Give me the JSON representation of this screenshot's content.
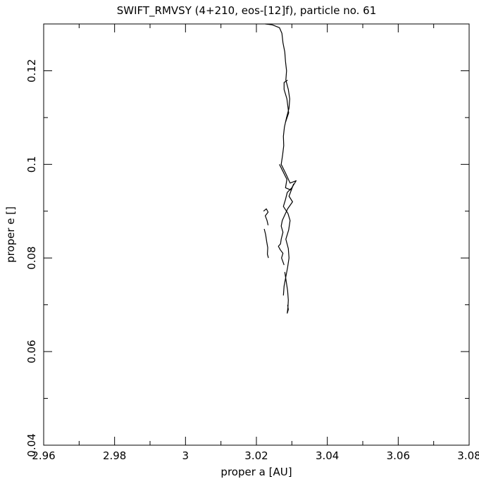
{
  "chart_data": {
    "type": "line",
    "title": "SWIFT_RMVSY (4+210, eos-[12]f), particle no. 61",
    "xlabel": "proper a [AU]",
    "ylabel": "proper e []",
    "xlim": [
      2.96,
      3.08
    ],
    "ylim": [
      0.04,
      0.13
    ],
    "x_ticks": [
      2.96,
      2.98,
      3.0,
      3.02,
      3.04,
      3.06,
      3.08
    ],
    "x_tick_labels": [
      "2.96",
      "2.98",
      "3",
      "3.02",
      "3.04",
      "3.06",
      "3.08"
    ],
    "y_ticks": [
      0.04,
      0.06,
      0.08,
      0.1,
      0.12
    ],
    "y_tick_labels": [
      "0.04",
      "0.06",
      "0.08",
      "0.1",
      "0.12"
    ],
    "grid": false,
    "legend": "none",
    "series": [
      {
        "points": [
          [
            3.0225,
            0.13
          ],
          [
            3.0245,
            0.1298
          ],
          [
            3.0265,
            0.1292
          ],
          [
            3.0272,
            0.128
          ],
          [
            3.0275,
            0.126
          ],
          [
            3.028,
            0.124
          ],
          [
            3.0282,
            0.122
          ],
          [
            3.0285,
            0.12
          ],
          [
            3.0283,
            0.118
          ],
          [
            3.029,
            0.116
          ],
          [
            3.0294,
            0.114
          ],
          [
            3.0292,
            0.112
          ],
          [
            3.0285,
            0.11
          ],
          [
            3.0279,
            0.108
          ],
          [
            3.0276,
            0.106
          ],
          [
            3.0277,
            0.104
          ],
          [
            3.0274,
            0.102
          ],
          [
            3.027,
            0.1
          ],
          [
            3.0283,
            0.098
          ],
          [
            3.0295,
            0.096
          ],
          [
            3.0312,
            0.0965
          ],
          [
            3.03,
            0.095
          ],
          [
            3.0287,
            0.094
          ],
          [
            3.0282,
            0.0925
          ],
          [
            3.0276,
            0.091
          ],
          [
            3.0289,
            0.0895
          ],
          [
            3.0295,
            0.088
          ],
          [
            3.0291,
            0.086
          ],
          [
            3.0283,
            0.084
          ],
          [
            3.029,
            0.082
          ],
          [
            3.0292,
            0.08
          ],
          [
            3.0288,
            0.078
          ],
          [
            3.0283,
            0.076
          ],
          [
            3.0278,
            0.074
          ],
          [
            3.0276,
            0.072
          ]
        ]
      },
      {
        "points": [
          [
            3.0288,
            0.118
          ],
          [
            3.0278,
            0.1175
          ],
          [
            3.0278,
            0.116
          ],
          [
            3.0286,
            0.114
          ],
          [
            3.0291,
            0.111
          ],
          [
            3.0282,
            0.109
          ]
        ]
      },
      {
        "points": [
          [
            3.0265,
            0.1
          ],
          [
            3.0275,
            0.0985
          ],
          [
            3.0286,
            0.0968
          ],
          [
            3.0282,
            0.095
          ],
          [
            3.0298,
            0.0945
          ],
          [
            3.0305,
            0.0958
          ],
          [
            3.0292,
            0.0932
          ],
          [
            3.0302,
            0.092
          ],
          [
            3.0288,
            0.0905
          ],
          [
            3.028,
            0.0892
          ],
          [
            3.0273,
            0.088
          ],
          [
            3.027,
            0.0868
          ],
          [
            3.0275,
            0.0855
          ],
          [
            3.027,
            0.084
          ],
          [
            3.0268,
            0.083
          ],
          [
            3.0262,
            0.0825
          ],
          [
            3.0267,
            0.0818
          ],
          [
            3.0275,
            0.081
          ],
          [
            3.0271,
            0.08
          ],
          [
            3.0278,
            0.0785
          ]
        ]
      },
      {
        "points": [
          [
            3.022,
            0.09
          ],
          [
            3.0228,
            0.0905
          ],
          [
            3.0233,
            0.0898
          ],
          [
            3.0225,
            0.089
          ],
          [
            3.023,
            0.088
          ],
          [
            3.0233,
            0.087
          ]
        ]
      },
      {
        "points": [
          [
            3.0222,
            0.0862
          ],
          [
            3.0226,
            0.085
          ],
          [
            3.0229,
            0.0835
          ],
          [
            3.0232,
            0.0822
          ],
          [
            3.0231,
            0.0808
          ],
          [
            3.0234,
            0.08
          ]
        ]
      },
      {
        "points": [
          [
            3.028,
            0.077
          ],
          [
            3.0284,
            0.075
          ],
          [
            3.0288,
            0.073
          ],
          [
            3.029,
            0.071
          ],
          [
            3.0289,
            0.0695
          ],
          [
            3.0287,
            0.0682
          ],
          [
            3.029,
            0.069
          ],
          [
            3.0288,
            0.07
          ]
        ]
      }
    ]
  }
}
